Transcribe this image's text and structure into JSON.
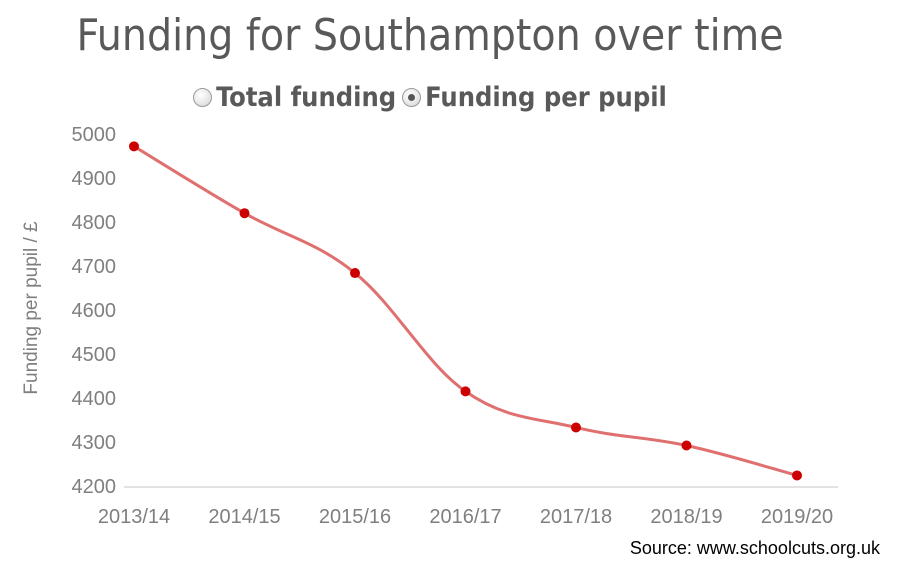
{
  "chart_data": {
    "type": "line",
    "title": "Funding for Southampton over time",
    "categories": [
      "2013/14",
      "2014/15",
      "2015/16",
      "2016/17",
      "2017/18",
      "2018/19",
      "2019/20"
    ],
    "series": [
      {
        "values": [
          4972,
          4820,
          4684,
          4415,
          4333,
          4292,
          4224
        ]
      }
    ],
    "xlabel": "",
    "ylabel": "Funding per pupil / £",
    "yticks": [
      4200,
      4300,
      4400,
      4500,
      4600,
      4700,
      4800,
      4900,
      5000
    ],
    "ylim": [
      4200,
      5000
    ],
    "grid": false,
    "line_color": "#e07070",
    "marker_color": "#cc0000"
  },
  "toggle": {
    "options": [
      {
        "label": "Total funding",
        "selected": false
      },
      {
        "label": "Funding per pupil",
        "selected": true
      }
    ]
  },
  "source": "Source: www.schoolcuts.org.uk"
}
